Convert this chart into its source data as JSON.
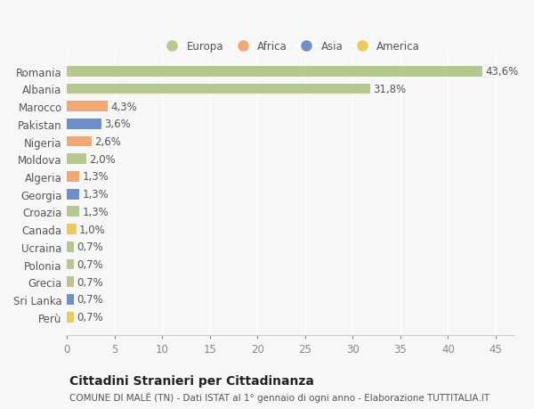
{
  "countries": [
    "Romania",
    "Albania",
    "Marocco",
    "Pakistan",
    "Nigeria",
    "Moldova",
    "Algeria",
    "Georgia",
    "Croazia",
    "Canada",
    "Ucraina",
    "Polonia",
    "Grecia",
    "Sri Lanka",
    "Perù"
  ],
  "values": [
    43.6,
    31.8,
    4.3,
    3.6,
    2.6,
    2.0,
    1.3,
    1.3,
    1.3,
    1.0,
    0.7,
    0.7,
    0.7,
    0.7,
    0.7
  ],
  "labels": [
    "43,6%",
    "31,8%",
    "4,3%",
    "3,6%",
    "2,6%",
    "2,0%",
    "1,3%",
    "1,3%",
    "1,3%",
    "1,0%",
    "0,7%",
    "0,7%",
    "0,7%",
    "0,7%",
    "0,7%"
  ],
  "continents": [
    "Europa",
    "Europa",
    "Africa",
    "Asia",
    "Africa",
    "Europa",
    "Africa",
    "Asia",
    "Europa",
    "America",
    "Europa",
    "Europa",
    "Europa",
    "Asia",
    "America"
  ],
  "continent_colors": {
    "Europa": "#b5c98e",
    "Africa": "#f0a875",
    "Asia": "#6e8fc9",
    "America": "#f0c860"
  },
  "legend_order": [
    "Europa",
    "Africa",
    "Asia",
    "America"
  ],
  "background_color": "#f7f7f7",
  "xlim": [
    0,
    47
  ],
  "xticks": [
    0,
    5,
    10,
    15,
    20,
    25,
    30,
    35,
    40,
    45
  ],
  "title": "Cittadini Stranieri per Cittadinanza",
  "subtitle": "COMUNE DI MALÉ (TN) - Dati ISTAT al 1° gennaio di ogni anno - Elaborazione TUTTITALIA.IT",
  "bar_height": 0.6,
  "grid_color": "#ffffff",
  "tick_label_fontsize": 8.5,
  "bar_label_fontsize": 8.5,
  "title_fontsize": 10,
  "subtitle_fontsize": 7.5
}
